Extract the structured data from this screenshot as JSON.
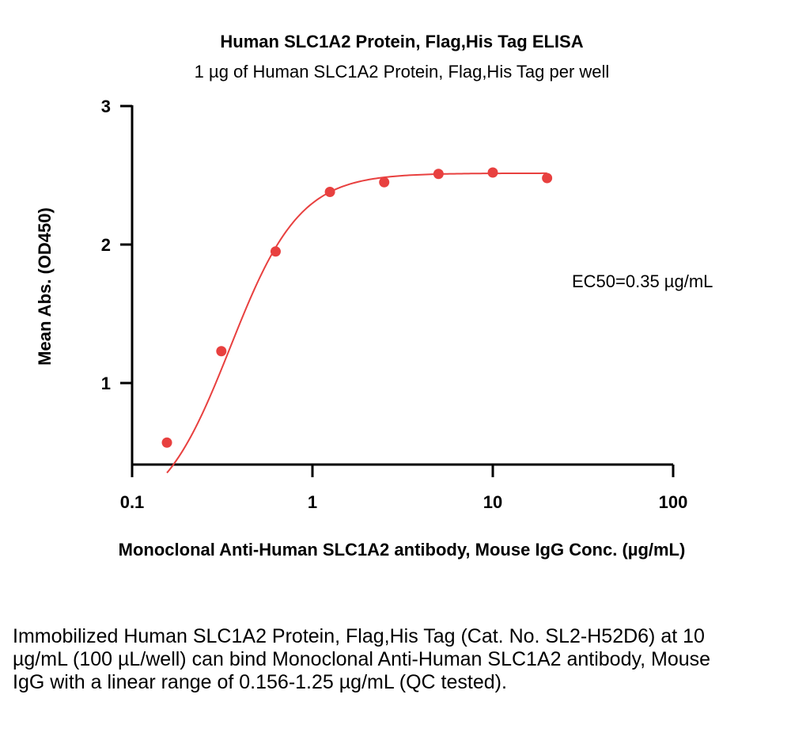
{
  "chart_data": {
    "type": "scatter",
    "title": "Human SLC1A2 Protein, Flag,His Tag ELISA",
    "subtitle": "1 µg of Human SLC1A2 Protein, Flag,His Tag per well",
    "xlabel": "Monoclonal Anti-Human SLC1A2 antibody, Mouse IgG Conc. (µg/mL)",
    "ylabel": "Mean Abs. (OD450)",
    "xscale": "log",
    "xlim": [
      0.1,
      100
    ],
    "ylim": [
      0.45,
      3
    ],
    "xticks": [
      "0.1",
      "1",
      "10",
      "100"
    ],
    "yticks": [
      "1",
      "2",
      "3"
    ],
    "grid": false,
    "color": "#e8403f",
    "series": [
      {
        "x": [
          0.156,
          0.3125,
          0.625,
          1.25,
          2.5,
          5,
          10,
          20
        ],
        "y": [
          0.57,
          1.23,
          1.95,
          2.38,
          2.45,
          2.51,
          2.52,
          2.48
        ]
      }
    ],
    "annotation": "EC50=0.35 µg/mL"
  },
  "caption": "Immobilized Human SLC1A2 Protein, Flag,His Tag (Cat. No. SL2-H52D6) at 10 µg/mL (100 µL/well) can bind Monoclonal Anti-Human SLC1A2 antibody, Mouse IgG with a linear range of 0.156-1.25 µg/mL (QC tested)."
}
